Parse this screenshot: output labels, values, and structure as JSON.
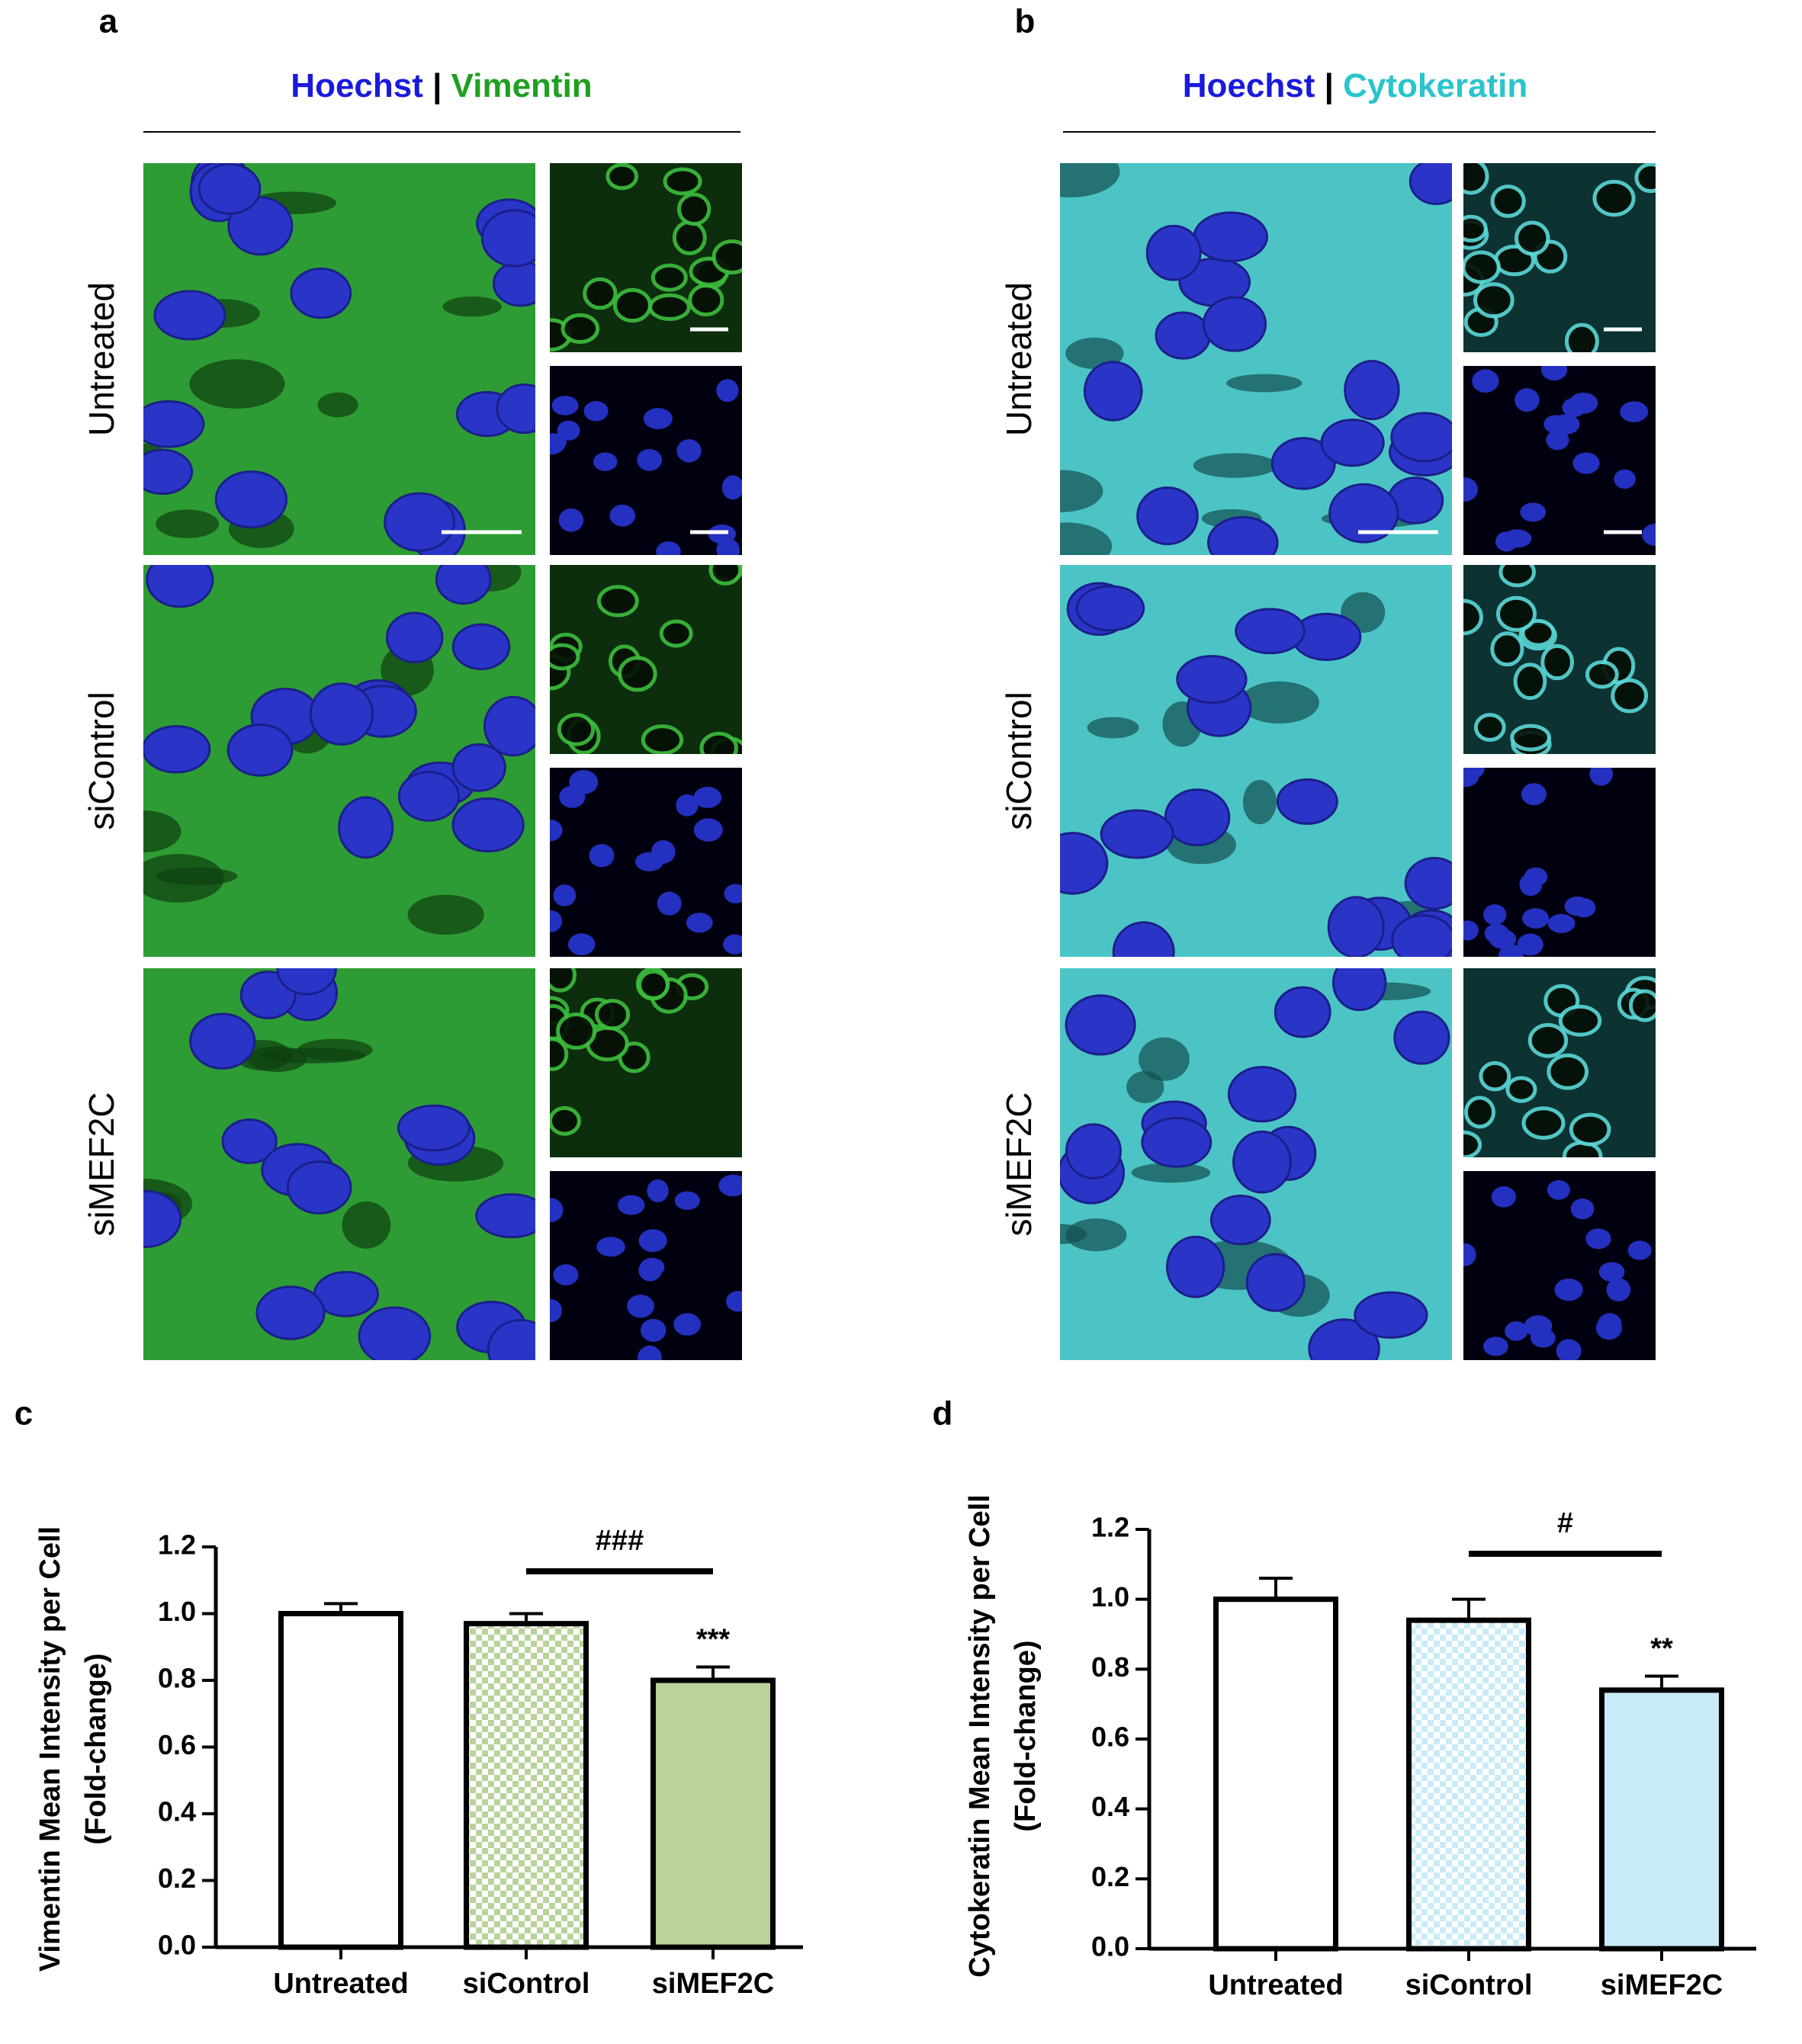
{
  "panels": {
    "a": {
      "label": "a",
      "stains": [
        "Hoechst",
        "Vimentin"
      ],
      "separator": "|",
      "rows": [
        "Untreated",
        "siControl",
        "siMEF2C"
      ]
    },
    "b": {
      "label": "b",
      "stains": [
        "Hoechst",
        "Cytokeratin"
      ],
      "separator": "|",
      "rows": [
        "Untreated",
        "siControl",
        "siMEF2C"
      ]
    }
  },
  "chart_data": [
    {
      "type": "bar",
      "panel_label": "c",
      "y_label": [
        "Vimentin Mean Intensity per Cell",
        "(Fold-change)"
      ],
      "categories": [
        "Untreated",
        "siControl",
        "siMEF2C"
      ],
      "values": [
        1.0,
        0.97,
        0.8
      ],
      "errors": [
        0.03,
        0.03,
        0.04
      ],
      "colors": [
        "#ffffff",
        "#b9d39b",
        "#b9d39b"
      ],
      "fills": [
        "solid",
        "checkered",
        "solid"
      ],
      "significance": [
        null,
        null,
        "***"
      ],
      "bracket_label": "###",
      "ylim": [
        0,
        1.2
      ],
      "yticks": [
        {
          "value": 0,
          "label": "0.0"
        },
        0.2,
        0.4,
        0.6,
        0.8,
        {
          "value": 1,
          "label": "1.0"
        },
        1.2
      ]
    },
    {
      "type": "bar",
      "panel_label": "d",
      "y_label": [
        "Cytokeratin Mean Intensity per Cell",
        "(Fold-change)"
      ],
      "categories": [
        "Untreated",
        "siControl",
        "siMEF2C"
      ],
      "values": [
        1.0,
        0.94,
        0.74
      ],
      "errors": [
        0.06,
        0.06,
        0.04
      ],
      "colors": [
        "#ffffff",
        "#c9ebf8",
        "#c9ebf8"
      ],
      "fills": [
        "solid",
        "checkered",
        "solid"
      ],
      "significance": [
        null,
        null,
        "**"
      ],
      "bracket_label": "#",
      "ylim": [
        0,
        1.2
      ],
      "yticks": [
        {
          "value": 0,
          "label": "0.0"
        },
        0.2,
        0.4,
        0.6,
        0.8,
        {
          "value": 1,
          "label": "1.0"
        },
        1.2
      ]
    }
  ]
}
